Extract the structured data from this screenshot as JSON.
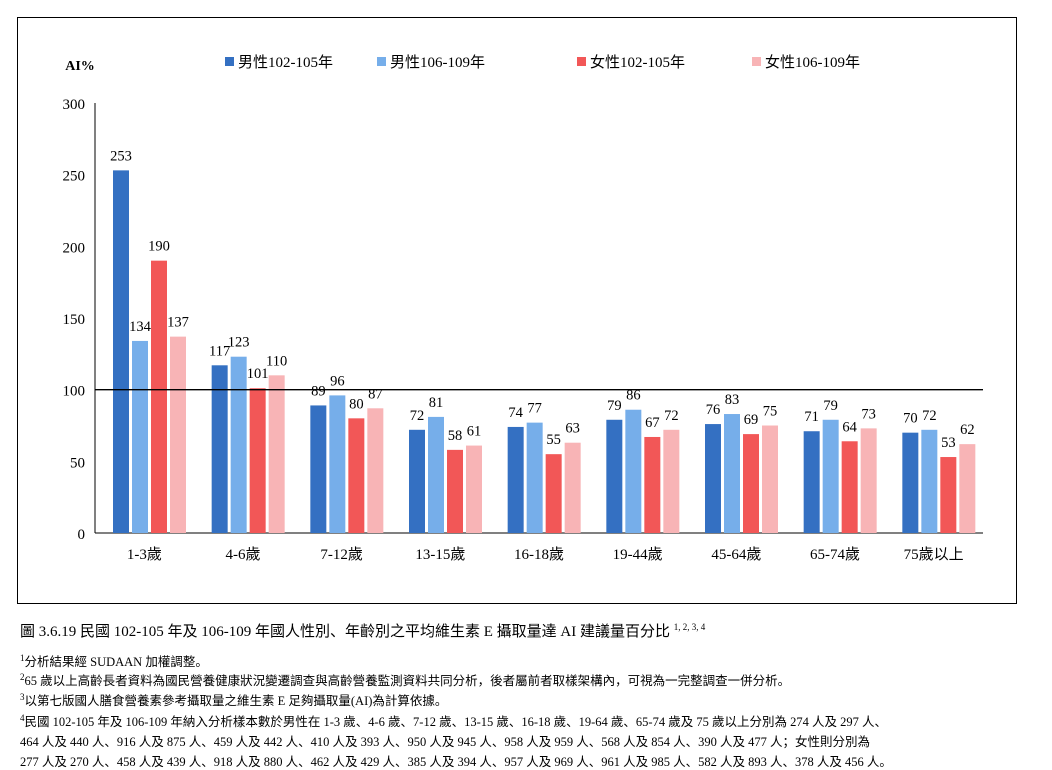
{
  "chart_data": {
    "type": "bar",
    "ylabel": "AI%",
    "ylim": [
      0,
      300
    ],
    "yticks": [
      0,
      50,
      100,
      150,
      200,
      250,
      300
    ],
    "reference_line": 100,
    "legend_position": "top",
    "categories": [
      "1-3歲",
      "4-6歲",
      "7-12歲",
      "13-15歲",
      "16-18歲",
      "19-44歲",
      "45-64歲",
      "65-74歲",
      "75歲以上"
    ],
    "series": [
      {
        "name": "男性102-105年",
        "color": "#3470c2",
        "values": [
          253,
          117,
          89,
          72,
          74,
          79,
          76,
          71,
          70
        ]
      },
      {
        "name": "男性106-109年",
        "color": "#76aeea",
        "values": [
          134,
          123,
          96,
          81,
          77,
          86,
          83,
          79,
          72
        ]
      },
      {
        "name": "女性102-105年",
        "color": "#f25757",
        "values": [
          190,
          101,
          80,
          58,
          55,
          67,
          69,
          64,
          53
        ]
      },
      {
        "name": "女性106-109年",
        "color": "#f8b4b6",
        "values": [
          137,
          110,
          87,
          61,
          63,
          72,
          75,
          73,
          62
        ]
      }
    ]
  },
  "caption": {
    "text": "圖 3.6.19 民國 102-105 年及 106-109 年國人性別、年齡別之平均維生素 E 攝取量達 AI 建議量百分比",
    "sup": "1, 2, 3, 4"
  },
  "notes": [
    {
      "num": "1",
      "text": "分析結果經 SUDAAN 加權調整。"
    },
    {
      "num": "2",
      "text": "65 歲以上高齡長者資料為國民營養健康狀況變遷調查與高齡營養監測資料共同分析，後者屬前者取樣架構內，可視為一完整調查一併分析。"
    },
    {
      "num": "3",
      "text": "以第七版國人膳食營養素參考攝取量之維生素 E 足夠攝取量(AI)為計算依據。"
    },
    {
      "num": "4",
      "text": "民國 102-105 年及 106-109 年納入分析樣本數於男性在 1-3 歲、4-6 歲、7-12 歲、13-15 歲、16-18 歲、19-64 歲、65-74 歲及 75 歲以上分別為 274 人及 297 人、"
    }
  ],
  "notes_cont": [
    "464 人及 440 人、916 人及 875 人、459 人及 442 人、410 人及 393 人、950 人及 945 人、958 人及 959 人、568 人及 854 人、390 人及 477 人；女性則分別為",
    "277 人及 270 人、458 人及 439 人、918 人及 880 人、462 人及 429 人、385 人及 394 人、957 人及 969 人、961 人及 985 人、582 人及 893 人、378 人及 456 人。"
  ]
}
